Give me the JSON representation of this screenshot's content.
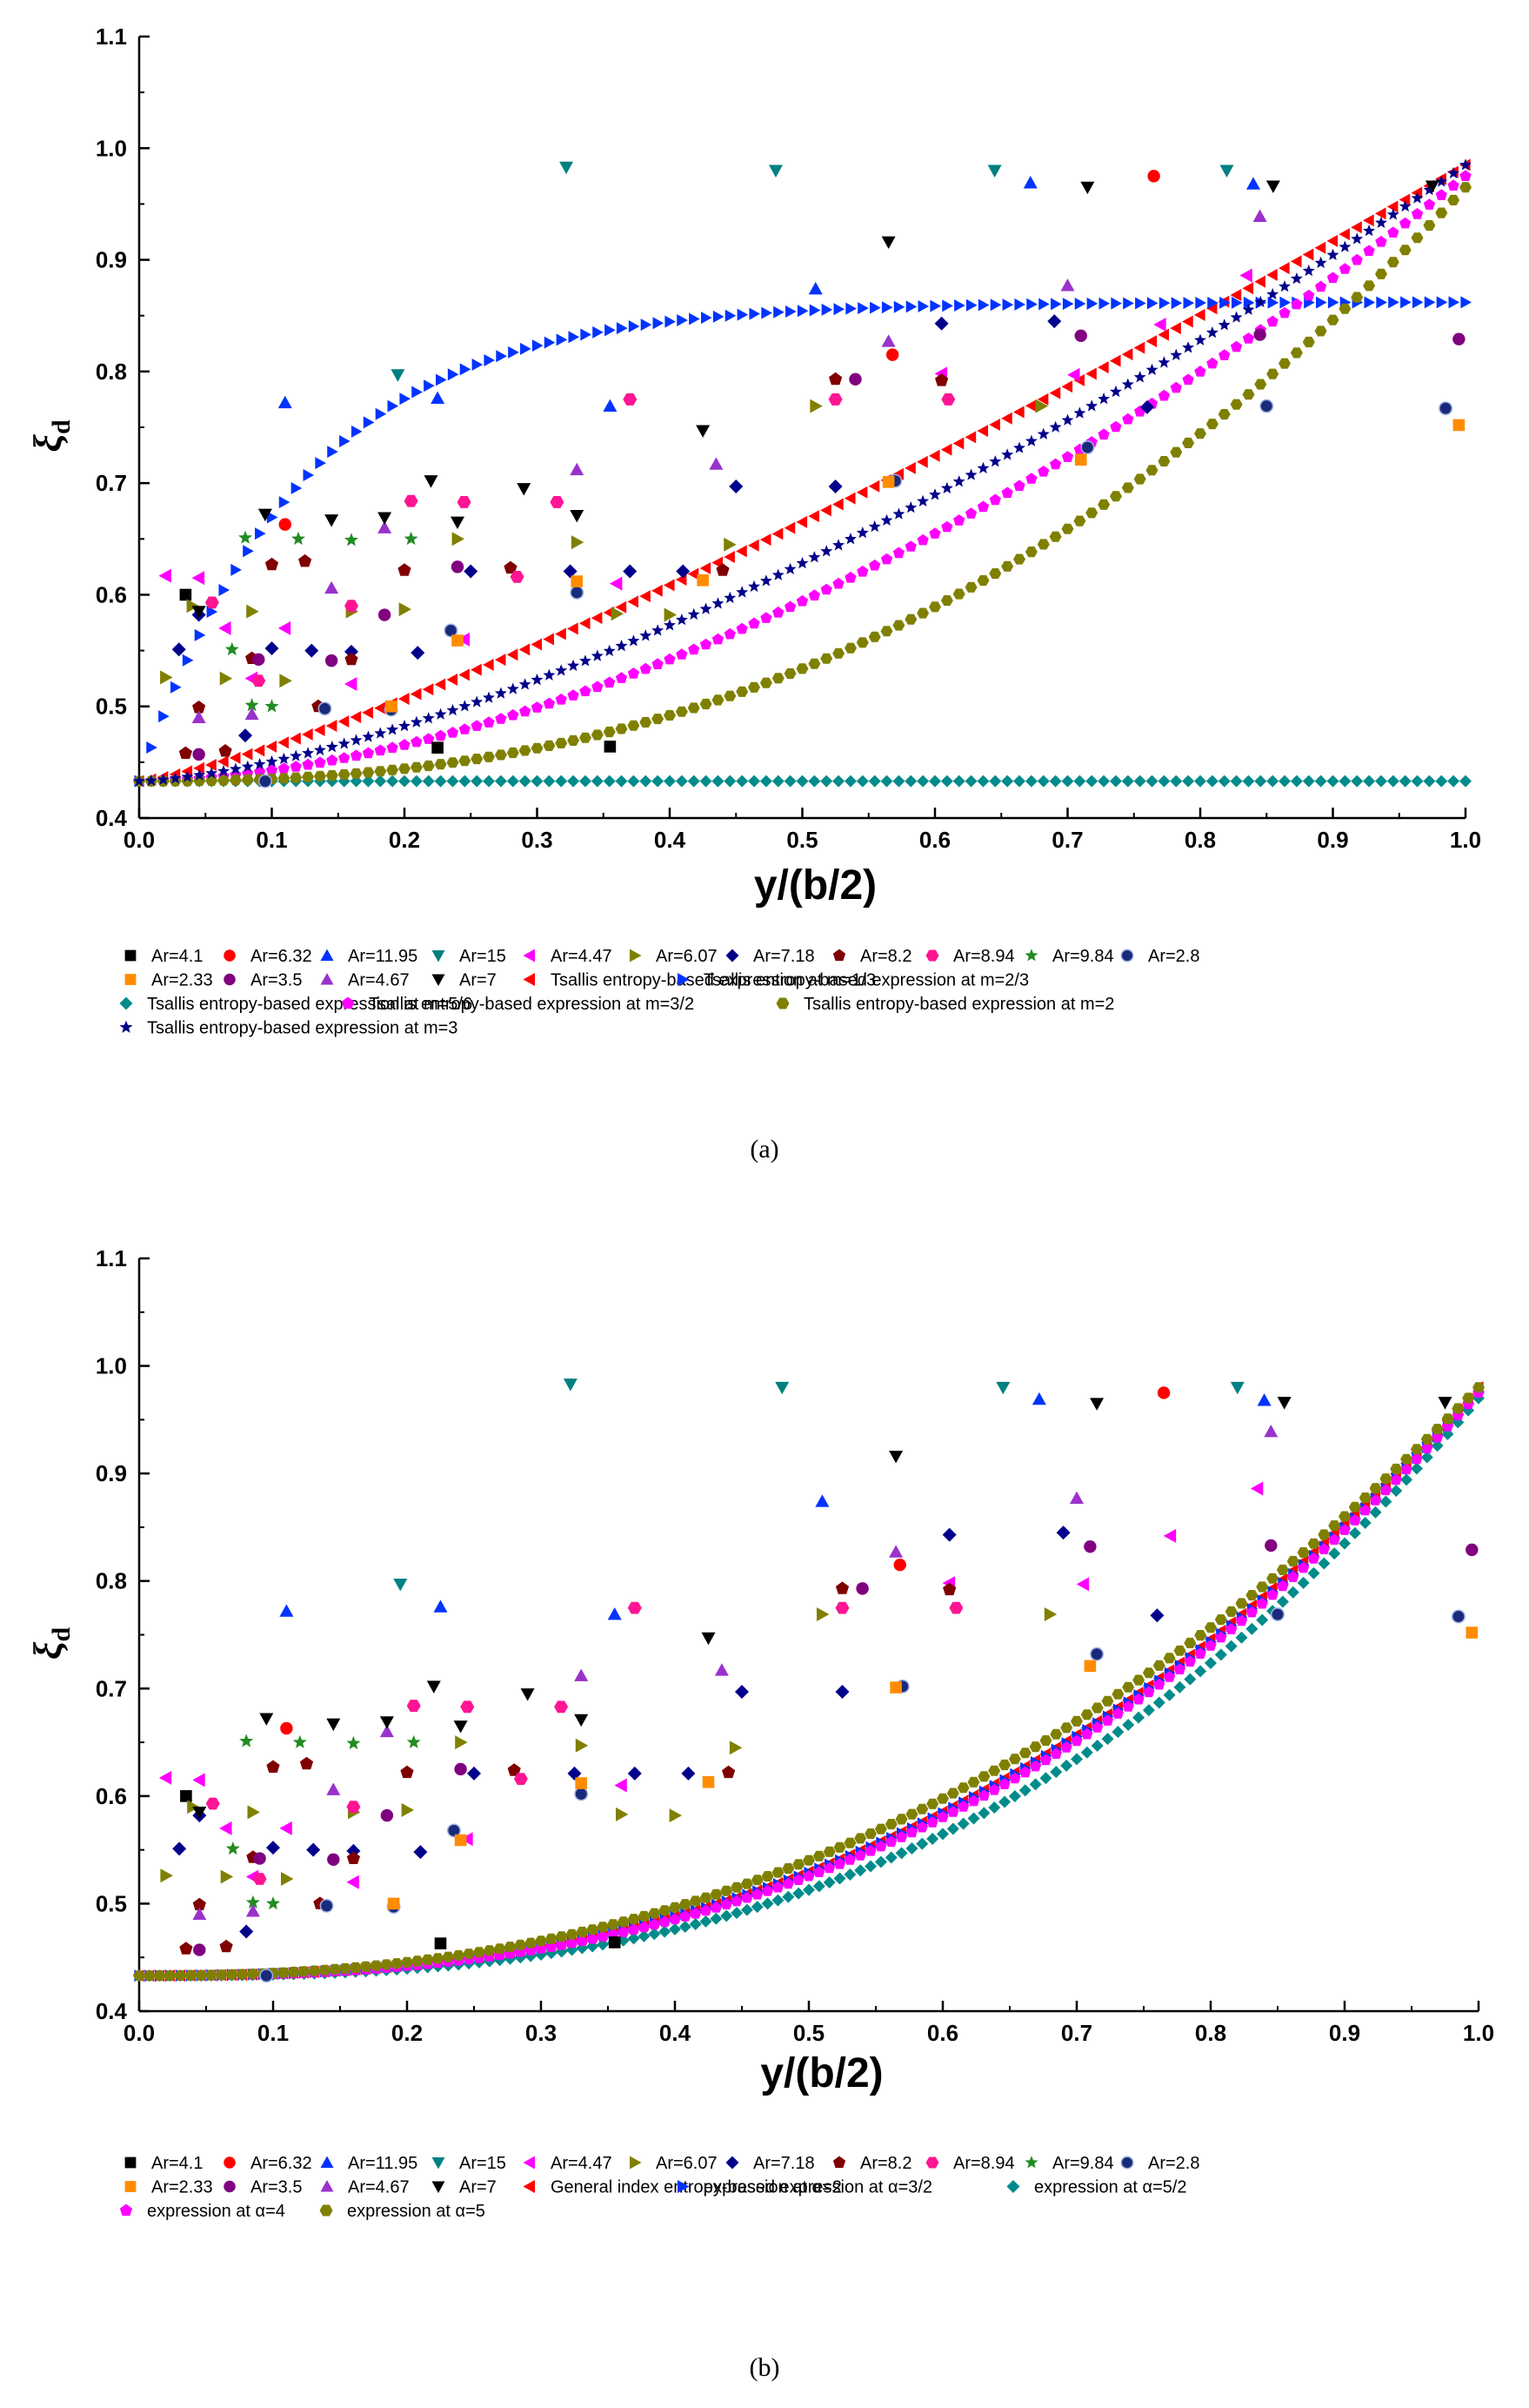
{
  "panels": [
    {
      "id": "a",
      "caption": "(a)",
      "chart_data": {
        "type": "scatter",
        "ylabel_main": "ξ",
        "ylabel_sub": "d",
        "xlabel": "y/(b/2)",
        "xlim": [
          0,
          1
        ],
        "ylim": [
          0.4,
          1.1
        ],
        "xticks": [
          "0.0",
          "0.1",
          "0.2",
          "0.3",
          "0.4",
          "0.5",
          "0.6",
          "0.7",
          "0.8",
          "0.9",
          "1.0"
        ],
        "yticks": [
          "0.4",
          "0.5",
          "0.6",
          "0.7",
          "0.8",
          "0.9",
          "1.0",
          "1.1"
        ],
        "observed_series": [
          {
            "name": "Ar=4.1",
            "color": "#000000",
            "marker": "square",
            "points": [
              [
                0.035,
                0.6
              ],
              [
                0.225,
                0.463
              ],
              [
                0.355,
                0.464
              ]
            ]
          },
          {
            "name": "Ar=6.32",
            "color": "#ff0000",
            "marker": "circle",
            "points": [
              [
                0.11,
                0.663
              ],
              [
                0.568,
                0.815
              ],
              [
                0.765,
                0.975
              ]
            ]
          },
          {
            "name": "Ar=11.95",
            "color": "#0033ff",
            "marker": "triangle-up",
            "points": [
              [
                0.11,
                0.772
              ],
              [
                0.225,
                0.776
              ],
              [
                0.355,
                0.769
              ],
              [
                0.51,
                0.874
              ],
              [
                0.672,
                0.969
              ],
              [
                0.84,
                0.968
              ]
            ]
          },
          {
            "name": "Ar=15",
            "color": "#008080",
            "marker": "triangle-down",
            "points": [
              [
                0.195,
                0.797
              ],
              [
                0.322,
                0.983
              ],
              [
                0.48,
                0.98
              ],
              [
                0.645,
                0.98
              ],
              [
                0.82,
                0.98
              ]
            ]
          },
          {
            "name": "Ar=4.47",
            "color": "#ff00ff",
            "marker": "triangle-left",
            "points": [
              [
                0.02,
                0.617
              ],
              [
                0.045,
                0.615
              ],
              [
                0.065,
                0.57
              ],
              [
                0.085,
                0.525
              ],
              [
                0.11,
                0.57
              ],
              [
                0.16,
                0.52
              ],
              [
                0.245,
                0.56
              ],
              [
                0.36,
                0.61
              ],
              [
                0.605,
                0.798
              ],
              [
                0.705,
                0.797
              ],
              [
                0.77,
                0.842
              ],
              [
                0.835,
                0.886
              ]
            ]
          },
          {
            "name": "Ar=6.07",
            "color": "#808000",
            "marker": "triangle-right",
            "points": [
              [
                0.02,
                0.526
              ],
              [
                0.04,
                0.59
              ],
              [
                0.065,
                0.525
              ],
              [
                0.085,
                0.585
              ],
              [
                0.11,
                0.523
              ],
              [
                0.16,
                0.585
              ],
              [
                0.2,
                0.587
              ],
              [
                0.24,
                0.65
              ],
              [
                0.33,
                0.647
              ],
              [
                0.36,
                0.583
              ],
              [
                0.4,
                0.582
              ],
              [
                0.445,
                0.645
              ],
              [
                0.51,
                0.769
              ],
              [
                0.68,
                0.769
              ]
            ]
          },
          {
            "name": "Ar=7.18",
            "color": "#00008b",
            "marker": "diamond",
            "points": [
              [
                0.03,
                0.551
              ],
              [
                0.045,
                0.582
              ],
              [
                0.08,
                0.474
              ],
              [
                0.1,
                0.552
              ],
              [
                0.13,
                0.55
              ],
              [
                0.16,
                0.549
              ],
              [
                0.21,
                0.548
              ],
              [
                0.25,
                0.621
              ],
              [
                0.325,
                0.621
              ],
              [
                0.37,
                0.621
              ],
              [
                0.41,
                0.621
              ],
              [
                0.45,
                0.697
              ],
              [
                0.525,
                0.697
              ],
              [
                0.605,
                0.843
              ],
              [
                0.69,
                0.845
              ],
              [
                0.76,
                0.768
              ]
            ]
          },
          {
            "name": "Ar=8.2",
            "color": "#800000",
            "marker": "pentagon",
            "points": [
              [
                0.035,
                0.458
              ],
              [
                0.045,
                0.499
              ],
              [
                0.065,
                0.46
              ],
              [
                0.085,
                0.543
              ],
              [
                0.1,
                0.627
              ],
              [
                0.125,
                0.63
              ],
              [
                0.135,
                0.5
              ],
              [
                0.16,
                0.542
              ],
              [
                0.2,
                0.622
              ],
              [
                0.28,
                0.624
              ],
              [
                0.44,
                0.622
              ],
              [
                0.525,
                0.793
              ],
              [
                0.605,
                0.792
              ]
            ]
          },
          {
            "name": "Ar=8.94",
            "color": "#ff1493",
            "marker": "hexagon",
            "points": [
              [
                0.055,
                0.593
              ],
              [
                0.09,
                0.523
              ],
              [
                0.16,
                0.59
              ],
              [
                0.205,
                0.684
              ],
              [
                0.245,
                0.683
              ],
              [
                0.285,
                0.616
              ],
              [
                0.315,
                0.683
              ],
              [
                0.37,
                0.775
              ],
              [
                0.525,
                0.775
              ],
              [
                0.61,
                0.775
              ]
            ]
          },
          {
            "name": "Ar=9.84",
            "color": "#228b22",
            "marker": "star",
            "points": [
              [
                0.07,
                0.551
              ],
              [
                0.08,
                0.651
              ],
              [
                0.085,
                0.501
              ],
              [
                0.1,
                0.5
              ],
              [
                0.12,
                0.65
              ],
              [
                0.16,
                0.649
              ],
              [
                0.205,
                0.65
              ]
            ]
          },
          {
            "name": "Ar=2.8",
            "color": "#1a2a7a",
            "marker": "sphere",
            "points": [
              [
                0.095,
                0.433
              ],
              [
                0.14,
                0.498
              ],
              [
                0.19,
                0.497
              ],
              [
                0.235,
                0.568
              ],
              [
                0.33,
                0.602
              ],
              [
                0.57,
                0.702
              ],
              [
                0.715,
                0.732
              ],
              [
                0.85,
                0.769
              ],
              [
                0.985,
                0.767
              ]
            ]
          },
          {
            "name": "Ar=2.33",
            "color": "#ff8c00",
            "marker": "square",
            "points": [
              [
                0.19,
                0.5
              ],
              [
                0.24,
                0.559
              ],
              [
                0.33,
                0.612
              ],
              [
                0.425,
                0.613
              ],
              [
                0.565,
                0.701
              ],
              [
                0.71,
                0.721
              ],
              [
                0.995,
                0.752
              ]
            ]
          },
          {
            "name": "Ar=3.5",
            "color": "#800080",
            "marker": "circle",
            "points": [
              [
                0.045,
                0.457
              ],
              [
                0.09,
                0.542
              ],
              [
                0.145,
                0.541
              ],
              [
                0.185,
                0.582
              ],
              [
                0.24,
                0.625
              ],
              [
                0.54,
                0.793
              ],
              [
                0.71,
                0.832
              ],
              [
                0.845,
                0.833
              ],
              [
                0.995,
                0.829
              ]
            ]
          },
          {
            "name": "Ar=4.67",
            "color": "#9932cc",
            "marker": "triangle-up",
            "points": [
              [
                0.045,
                0.49
              ],
              [
                0.085,
                0.493
              ],
              [
                0.145,
                0.606
              ],
              [
                0.185,
                0.66
              ],
              [
                0.33,
                0.712
              ],
              [
                0.435,
                0.717
              ],
              [
                0.565,
                0.827
              ],
              [
                0.7,
                0.877
              ],
              [
                0.845,
                0.939
              ]
            ]
          },
          {
            "name": "Ar=7",
            "color": "#000000",
            "marker": "triangle-down",
            "points": [
              [
                0.045,
                0.585
              ],
              [
                0.095,
                0.672
              ],
              [
                0.145,
                0.667
              ],
              [
                0.185,
                0.669
              ],
              [
                0.22,
                0.702
              ],
              [
                0.24,
                0.665
              ],
              [
                0.29,
                0.695
              ],
              [
                0.33,
                0.671
              ],
              [
                0.425,
                0.747
              ],
              [
                0.565,
                0.916
              ],
              [
                0.715,
                0.965
              ],
              [
                0.855,
                0.966
              ],
              [
                0.975,
                0.966
              ]
            ]
          }
        ],
        "model_series": [
          {
            "name": "Tsallis entropy-based expression at m=1/3",
            "color": "#ff0000",
            "marker": "triangle-left",
            "curve": "power",
            "exponent": 1.25,
            "end": 0.985
          },
          {
            "name": "Tsallis entropy-based expression at m=2/3",
            "color": "#0033ff",
            "marker": "triangle-right",
            "curve": "saturating",
            "end": 0.862
          },
          {
            "name": "Tsallis entropy-based expression at m=5/6",
            "color": "#008b8b",
            "marker": "diamond",
            "curve": "constant",
            "end": 0.433
          },
          {
            "name": "Tsallis entropy-based expression at m=3/2",
            "color": "#ff00ff",
            "marker": "pentagon",
            "curve": "power",
            "exponent": 1.75,
            "end": 0.975
          },
          {
            "name": "Tsallis entropy-based expression at m=2",
            "color": "#808000",
            "marker": "hexagon",
            "curve": "power",
            "exponent": 2.4,
            "end": 0.965
          },
          {
            "name": "Tsallis entropy-based expression at m=3",
            "color": "#00008b",
            "marker": "star",
            "curve": "power",
            "exponent": 1.5,
            "end": 0.985
          }
        ],
        "legend_rows": [
          [
            "Ar=4.1",
            "Ar=6.32",
            "Ar=11.95",
            "Ar=15",
            "Ar=4.47",
            "Ar=6.07",
            "Ar=7.18",
            "Ar=8.2",
            "Ar=8.94",
            "Ar=9.84",
            "Ar=2.8"
          ],
          [
            "Ar=2.33",
            "Ar=3.5",
            "Ar=4.67",
            "Ar=7",
            "Tsallis entropy-based expression at m=1/3",
            "Tsallis entropy-based expression at m=2/3"
          ],
          [
            "Tsallis entropy-based expression at m=5/6",
            "Tsallis entropy-based expression at m=3/2",
            "Tsallis entropy-based expression at m=2"
          ],
          [
            "Tsallis entropy-based expression at m=3"
          ]
        ]
      }
    },
    {
      "id": "b",
      "caption": "(b)",
      "chart_data": {
        "type": "scatter",
        "ylabel_main": "ξ",
        "ylabel_sub": "d",
        "xlabel": "y/(b/2)",
        "xlim": [
          0,
          1
        ],
        "ylim": [
          0.4,
          1.1
        ],
        "xticks": [
          "0.0",
          "0.1",
          "0.2",
          "0.3",
          "0.4",
          "0.5",
          "0.6",
          "0.7",
          "0.8",
          "0.9",
          "1.0"
        ],
        "yticks": [
          "0.4",
          "0.5",
          "0.6",
          "0.7",
          "0.8",
          "0.9",
          "1.0",
          "1.1"
        ],
        "observed_series": "same as panel (a)",
        "model_series": [
          {
            "name": "General index entropy-based expression at α=3/2",
            "color": "#ff0000",
            "marker": "triangle-left",
            "curve": "power",
            "exponent": 2.5,
            "end": 0.98
          },
          {
            "name": "expression at α=2",
            "color": "#0033ff",
            "marker": "triangle-right",
            "curve": "power",
            "exponent": 2.5,
            "end": 0.975
          },
          {
            "name": "expression at α=5/2",
            "color": "#008b8b",
            "marker": "diamond",
            "curve": "power",
            "exponent": 2.75,
            "end": 0.97
          },
          {
            "name": "expression at α=4",
            "color": "#ff00ff",
            "marker": "pentagon",
            "curve": "power",
            "exponent": 2.55,
            "end": 0.975
          },
          {
            "name": "expression at α=5",
            "color": "#808000",
            "marker": "hexagon",
            "curve": "power",
            "exponent": 2.35,
            "end": 0.98
          }
        ],
        "legend_rows": [
          [
            "Ar=4.1",
            "Ar=6.32",
            "Ar=11.95",
            "Ar=15",
            "Ar=4.47",
            "Ar=6.07",
            "Ar=7.18",
            "Ar=8.2",
            "Ar=8.94",
            "Ar=9.84",
            "Ar=2.8"
          ],
          [
            "Ar=2.33",
            "Ar=3.5",
            "Ar=4.67",
            "Ar=7",
            "General index entropy-based expression at α=3/2",
            "expression at α=2",
            "expression at α=5/2"
          ],
          [
            "expression at α=4",
            "expression at α=5"
          ]
        ]
      }
    }
  ]
}
